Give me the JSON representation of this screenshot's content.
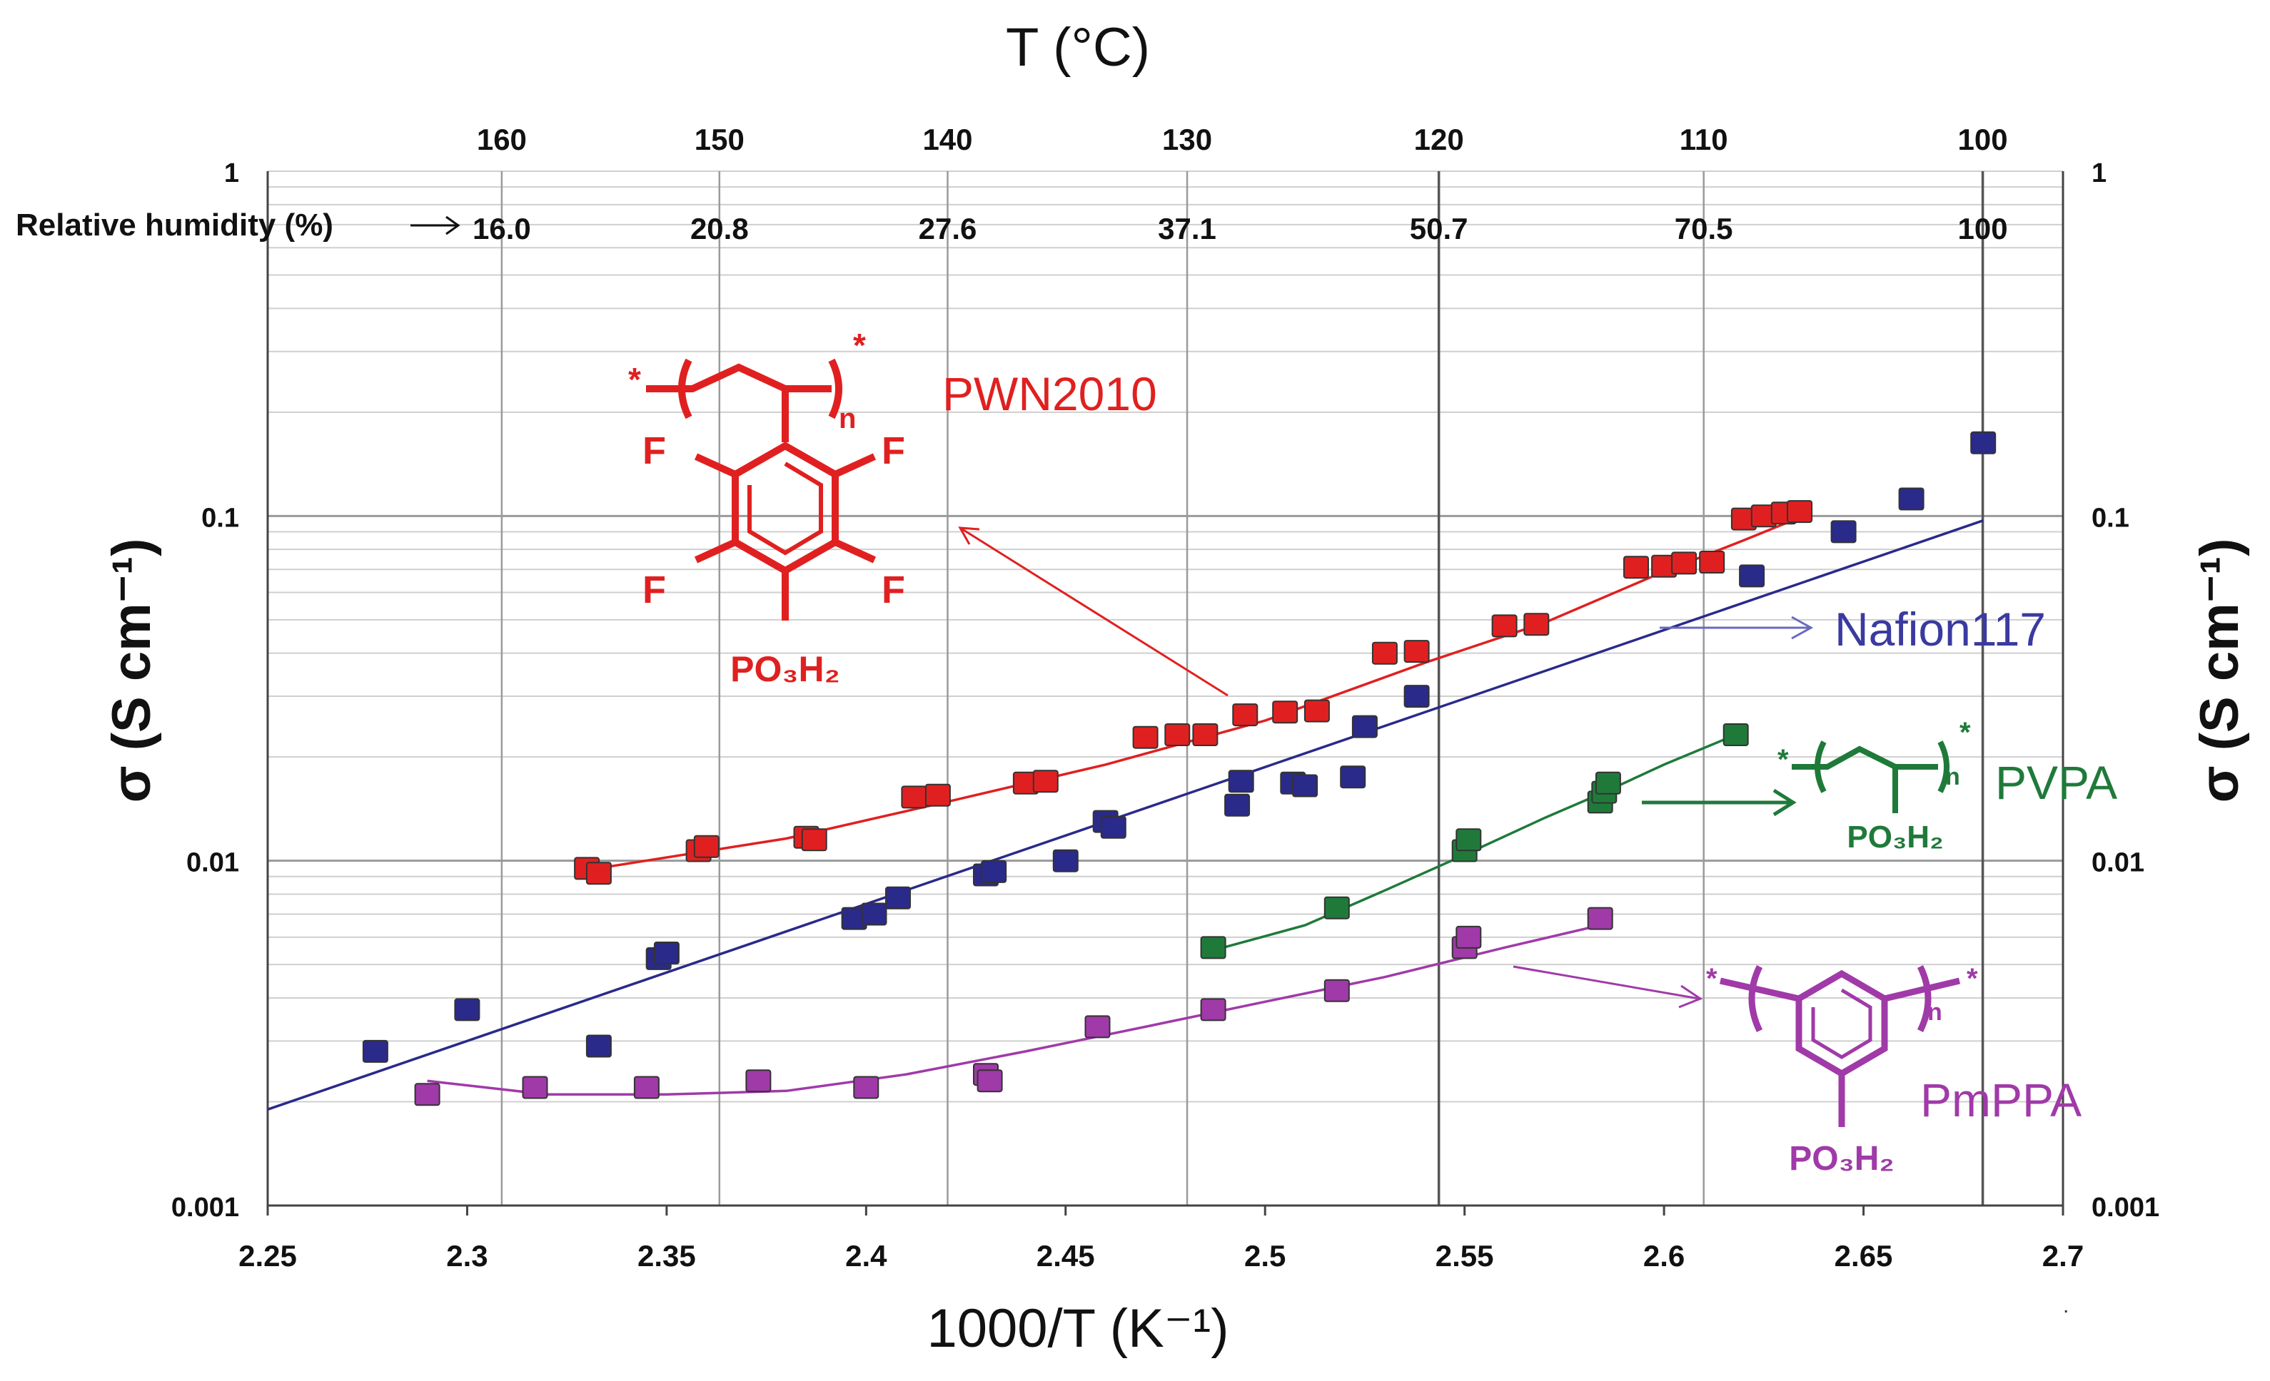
{
  "chart_data": {
    "type": "scatter",
    "title_top": "T (°C)",
    "xlabel": "1000/T (K⁻¹)",
    "ylabel": "σ (S cm⁻¹)",
    "ylabel_right": "σ (S cm⁻¹)",
    "xlim": [
      2.25,
      2.7
    ],
    "ylim": [
      0.001,
      1
    ],
    "yscale": "log",
    "x_ticks": [
      "2.25",
      "2.3",
      "2.35",
      "2.4",
      "2.45",
      "2.5",
      "2.55",
      "2.6",
      "2.65",
      "2.7"
    ],
    "y_ticks": [
      "0.001",
      "0.01",
      "0.1",
      "1"
    ],
    "y_ticks_right": [
      "0.001",
      "0.01",
      "0.1",
      "1"
    ],
    "top_temp_ticks": [
      "160",
      "150",
      "140",
      "130",
      "120",
      "110",
      "100"
    ],
    "humidity_label": "Relative humidity (%)",
    "humidity_ticks": [
      "16.0",
      "20.8",
      "27.6",
      "37.1",
      "50.7",
      "70.5",
      "100"
    ],
    "series": [
      {
        "name": "PWN2010",
        "color": "#e02020",
        "marker": "rect",
        "points": [
          [
            2.33,
            0.0095
          ],
          [
            2.333,
            0.0092
          ],
          [
            2.358,
            0.0107
          ],
          [
            2.36,
            0.011
          ],
          [
            2.385,
            0.0117
          ],
          [
            2.387,
            0.0115
          ],
          [
            2.412,
            0.0153
          ],
          [
            2.418,
            0.0155
          ],
          [
            2.44,
            0.0168
          ],
          [
            2.445,
            0.017
          ],
          [
            2.47,
            0.0228
          ],
          [
            2.478,
            0.0232
          ],
          [
            2.485,
            0.0232
          ],
          [
            2.495,
            0.0265
          ],
          [
            2.505,
            0.027
          ],
          [
            2.513,
            0.0272
          ],
          [
            2.53,
            0.04
          ],
          [
            2.538,
            0.0405
          ],
          [
            2.56,
            0.048
          ],
          [
            2.568,
            0.0485
          ],
          [
            2.593,
            0.071
          ],
          [
            2.6,
            0.0715
          ],
          [
            2.605,
            0.073
          ],
          [
            2.612,
            0.0735
          ],
          [
            2.62,
            0.098
          ],
          [
            2.625,
            0.1
          ],
          [
            2.63,
            0.102
          ],
          [
            2.634,
            0.103
          ]
        ],
        "fit": [
          [
            2.33,
            0.0094
          ],
          [
            2.38,
            0.0116
          ],
          [
            2.42,
            0.0148
          ],
          [
            2.46,
            0.019
          ],
          [
            2.5,
            0.0255
          ],
          [
            2.54,
            0.0375
          ],
          [
            2.57,
            0.049
          ],
          [
            2.6,
            0.069
          ],
          [
            2.62,
            0.085
          ],
          [
            2.635,
            0.1
          ]
        ]
      },
      {
        "name": "Nafion117",
        "color": "#2a2a8a",
        "marker": "rect",
        "points": [
          [
            2.277,
            0.0028
          ],
          [
            2.3,
            0.0037
          ],
          [
            2.333,
            0.0029
          ],
          [
            2.348,
            0.0052
          ],
          [
            2.35,
            0.0054
          ],
          [
            2.397,
            0.0068
          ],
          [
            2.402,
            0.007
          ],
          [
            2.408,
            0.0078
          ],
          [
            2.43,
            0.0091
          ],
          [
            2.432,
            0.0093
          ],
          [
            2.45,
            0.01
          ],
          [
            2.46,
            0.013
          ],
          [
            2.462,
            0.0125
          ],
          [
            2.493,
            0.0145
          ],
          [
            2.494,
            0.017
          ],
          [
            2.507,
            0.0168
          ],
          [
            2.51,
            0.0165
          ],
          [
            2.522,
            0.0175
          ],
          [
            2.525,
            0.0245
          ],
          [
            2.538,
            0.03
          ],
          [
            2.622,
            0.067
          ],
          [
            2.645,
            0.09
          ],
          [
            2.662,
            0.112
          ],
          [
            2.68,
            0.163
          ]
        ],
        "fit": [
          [
            2.25,
            0.0019
          ],
          [
            2.68,
            0.097
          ]
        ]
      },
      {
        "name": "PVPA",
        "color": "#1f7a3a",
        "marker": "rect",
        "points": [
          [
            2.487,
            0.0056
          ],
          [
            2.518,
            0.0073
          ],
          [
            2.55,
            0.0107
          ],
          [
            2.551,
            0.0115
          ],
          [
            2.584,
            0.0148
          ],
          [
            2.585,
            0.0158
          ],
          [
            2.586,
            0.0168
          ],
          [
            2.618,
            0.0232
          ]
        ],
        "fit": [
          [
            2.487,
            0.0055
          ],
          [
            2.51,
            0.0065
          ],
          [
            2.53,
            0.0082
          ],
          [
            2.55,
            0.0104
          ],
          [
            2.57,
            0.0133
          ],
          [
            2.585,
            0.0158
          ],
          [
            2.6,
            0.019
          ],
          [
            2.618,
            0.0232
          ]
        ]
      },
      {
        "name": "PmPPA",
        "color": "#a03aa8",
        "marker": "rect",
        "points": [
          [
            2.29,
            0.0021
          ],
          [
            2.317,
            0.0022
          ],
          [
            2.345,
            0.0022
          ],
          [
            2.373,
            0.0023
          ],
          [
            2.4,
            0.0022
          ],
          [
            2.43,
            0.0024
          ],
          [
            2.431,
            0.0023
          ],
          [
            2.458,
            0.0033
          ],
          [
            2.487,
            0.0037
          ],
          [
            2.518,
            0.0042
          ],
          [
            2.55,
            0.0056
          ],
          [
            2.551,
            0.006
          ],
          [
            2.584,
            0.0068
          ]
        ],
        "fit": [
          [
            2.29,
            0.0023
          ],
          [
            2.32,
            0.0021
          ],
          [
            2.35,
            0.0021
          ],
          [
            2.38,
            0.00215
          ],
          [
            2.41,
            0.0024
          ],
          [
            2.44,
            0.0028
          ],
          [
            2.47,
            0.0033
          ],
          [
            2.5,
            0.0039
          ],
          [
            2.53,
            0.0046
          ],
          [
            2.56,
            0.0056
          ],
          [
            2.584,
            0.0065
          ]
        ]
      }
    ],
    "annotations": {
      "pwn": "PWN2010",
      "nafion": "Nafion117",
      "pvpa": "PVPA",
      "pmppa": "PmPPA",
      "pwn_sub": "PO₃H₂",
      "pvpa_sub": "PO₃H₂",
      "pmppa_sub": "PO₃H₂",
      "f": "F",
      "n": "n",
      "star": "*"
    }
  }
}
